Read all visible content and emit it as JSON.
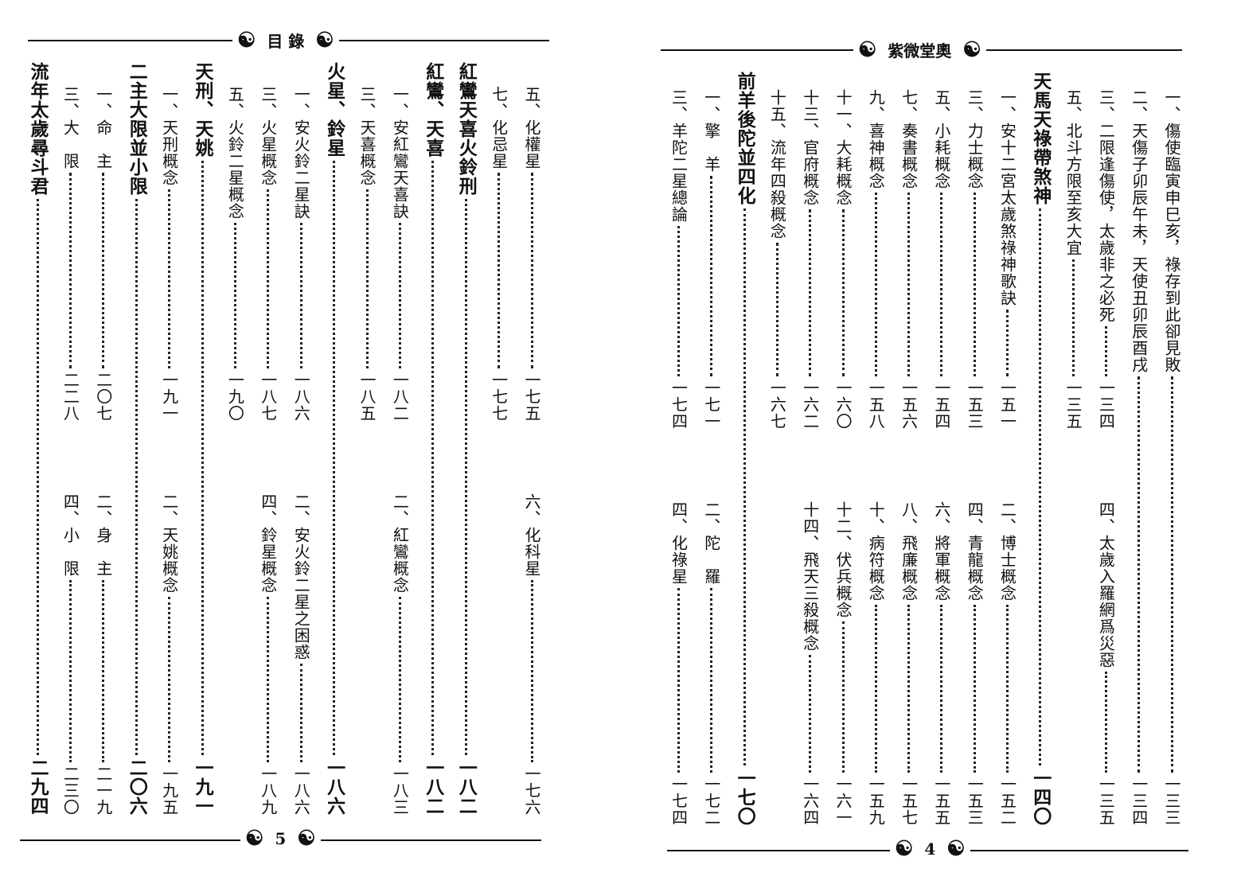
{
  "left_page": {
    "header_title": "目 錄",
    "footer_page": "5",
    "ornament_icon": "yin-yang-icon",
    "columns": [
      {
        "top": {
          "text": "五、化權星",
          "page": "一七五"
        },
        "bottom": {
          "text": "六、化科星",
          "page": "一七六"
        }
      },
      {
        "top": {
          "text": "七、化忌星",
          "page": "一七七"
        }
      },
      {
        "full": {
          "text": "紅鸞天喜火鈴刑",
          "page": "一八二",
          "heading": true
        }
      },
      {
        "full": {
          "text": "紅鸞、天喜",
          "page": "一八二",
          "heading": true
        }
      },
      {
        "top": {
          "text": "一、安紅鸞天喜訣",
          "page": "一八二"
        },
        "bottom": {
          "text": "二、紅鸞概念",
          "page": "一八三"
        }
      },
      {
        "top": {
          "text": "三、天喜概念",
          "page": "一八五"
        }
      },
      {
        "full": {
          "text": "火星、鈴星",
          "page": "一八六",
          "heading": true
        }
      },
      {
        "top": {
          "text": "一、安火鈴二星訣",
          "page": "一八六"
        },
        "bottom": {
          "text": "二、安火鈴二星之困惑",
          "page": "一八六"
        }
      },
      {
        "top": {
          "text": "三、火星概念",
          "page": "一八七"
        },
        "bottom": {
          "text": "四、鈴星概念",
          "page": "一八九"
        }
      },
      {
        "top": {
          "text": "五、火鈴二星概念",
          "page": "一九〇"
        }
      },
      {
        "full": {
          "text": "天刑、天姚",
          "page": "一九一",
          "heading": true
        }
      },
      {
        "top": {
          "text": "一、天刑概念",
          "page": "一九一"
        },
        "bottom": {
          "text": "二、天姚概念",
          "page": "一九五"
        }
      },
      {
        "full": {
          "text": "二主大限並小限",
          "page": "二〇六",
          "heading": true
        }
      },
      {
        "top": {
          "text": "一、命　主",
          "page": "二〇七"
        },
        "bottom": {
          "text": "二、身　主",
          "page": "二一九"
        }
      },
      {
        "top": {
          "text": "三、大　限",
          "page": "二二八"
        },
        "bottom": {
          "text": "四、小　限",
          "page": "二三〇"
        }
      },
      {
        "full": {
          "text": "流年太歲尋斗君",
          "page": "二九四",
          "heading": true
        }
      }
    ]
  },
  "right_page": {
    "header_title": "紫微堂奧",
    "footer_page": "4",
    "ornament_icon": "yin-yang-icon",
    "columns": [
      {
        "full": {
          "text": "一、傷使臨寅申巳亥，祿存到此卻見敗",
          "page": "一三三"
        }
      },
      {
        "full": {
          "text": "二、天傷子卯辰午未，天使丑卯辰酉戌",
          "page": "一三四"
        }
      },
      {
        "top": {
          "text": "三、二限逢傷使，太歲非之必死",
          "page": "一三四"
        },
        "bottom": {
          "text": "四、太歲入羅網爲災惡",
          "page": "一三五"
        }
      },
      {
        "top": {
          "text": "五、北斗方限至亥大宜",
          "page": "一三五"
        }
      },
      {
        "full": {
          "text": "天馬天祿帶煞神",
          "page": "一四〇",
          "heading": true
        }
      },
      {
        "top": {
          "text": "一、安十二宮太歲煞祿神歌訣",
          "page": "一五一"
        },
        "bottom": {
          "text": "二、博士概念",
          "page": "一五二"
        }
      },
      {
        "top": {
          "text": "三、力士概念",
          "page": "一五三"
        },
        "bottom": {
          "text": "四、青龍概念",
          "page": "一五三"
        }
      },
      {
        "top": {
          "text": "五、小耗概念",
          "page": "一五四"
        },
        "bottom": {
          "text": "六、將軍概念",
          "page": "一五五"
        }
      },
      {
        "top": {
          "text": "七、奏書概念",
          "page": "一五六"
        },
        "bottom": {
          "text": "八、飛廉概念",
          "page": "一五七"
        }
      },
      {
        "top": {
          "text": "九、喜神概念",
          "page": "一五八"
        },
        "bottom": {
          "text": "十、病符概念",
          "page": "一五九"
        }
      },
      {
        "top": {
          "text": "十一、大耗概念",
          "page": "一六〇"
        },
        "bottom": {
          "text": "十二、伏兵概念",
          "page": "一六一"
        }
      },
      {
        "top": {
          "text": "十三、官府概念",
          "page": "一六二"
        },
        "bottom": {
          "text": "十四、飛天三殺概念",
          "page": "一六四"
        }
      },
      {
        "top": {
          "text": "十五、流年四殺概念",
          "page": "一六七"
        }
      },
      {
        "full": {
          "text": "前羊後陀並四化",
          "page": "一七〇",
          "heading": true
        }
      },
      {
        "top": {
          "text": "一、擎　羊",
          "page": "一七一"
        },
        "bottom": {
          "text": "二、陀　羅",
          "page": "一七二"
        }
      },
      {
        "top": {
          "text": "三、羊陀二星總論",
          "page": "一七四"
        },
        "bottom": {
          "text": "四、化祿星",
          "page": "一七四"
        }
      }
    ]
  }
}
